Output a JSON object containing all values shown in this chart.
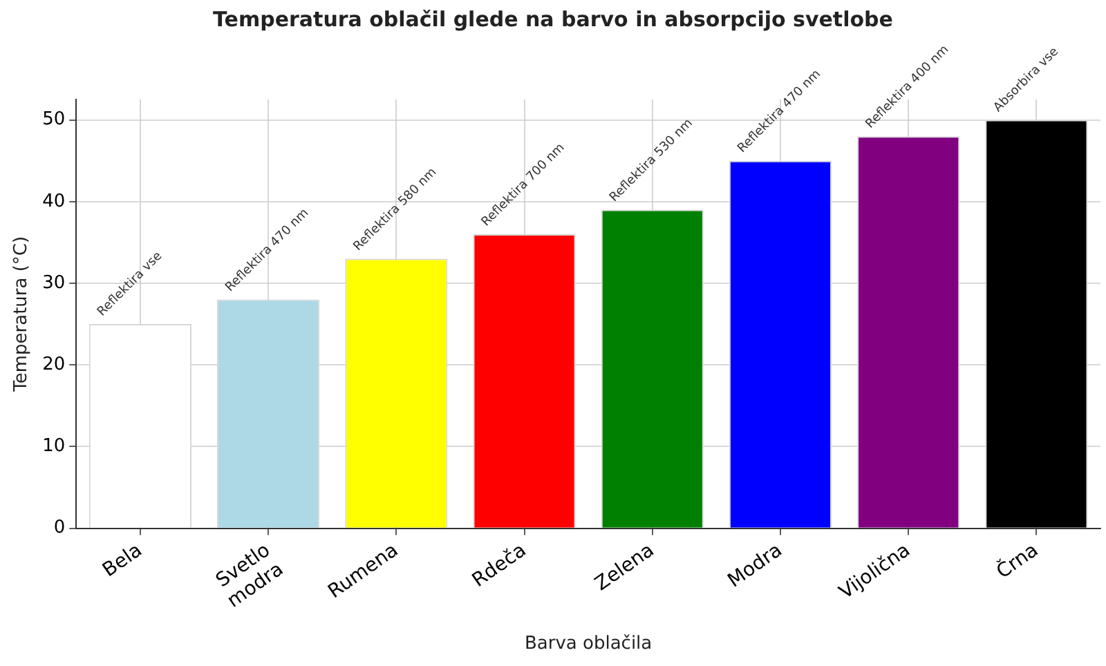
{
  "chart_data": {
    "type": "bar",
    "title": "Temperatura oblačil glede na barvo in absorpcijo svetlobe",
    "xlabel": "Barva oblačila",
    "ylabel": "Temperatura (°C)",
    "categories": [
      "Bela",
      "Svetlo\nmodra",
      "Rumena",
      "Rdeča",
      "Zelena",
      "Modra",
      "Vijolična",
      "Črna"
    ],
    "values": [
      25,
      28,
      33,
      36,
      39,
      45,
      48,
      50
    ],
    "colors": [
      "#ffffff",
      "#add8e6",
      "#ffff00",
      "#ff0000",
      "#008000",
      "#0000ff",
      "#800080",
      "#000000"
    ],
    "ylim": [
      0,
      52.5
    ],
    "yticks": [
      0,
      10,
      20,
      30,
      40,
      50
    ],
    "grid": true,
    "annotations": [
      {
        "text": "Reflektira vse",
        "x": "Bela",
        "y": 25
      },
      {
        "text": "Reflektira 470 nm",
        "x": "Svetlo\nmodra",
        "y": 28
      },
      {
        "text": "Reflektira 580 nm",
        "x": "Rumena",
        "y": 33
      },
      {
        "text": "Reflektira 700 nm",
        "x": "Rdeča",
        "y": 36
      },
      {
        "text": "Reflektira 530 nm",
        "x": "Zelena",
        "y": 39
      },
      {
        "text": "Reflektira 470 nm",
        "x": "Modra",
        "y": 45
      },
      {
        "text": "Reflektira 400 nm",
        "x": "Vijolična",
        "y": 48
      },
      {
        "text": "Absorbira vse",
        "x": "Črna",
        "y": 50
      }
    ]
  }
}
